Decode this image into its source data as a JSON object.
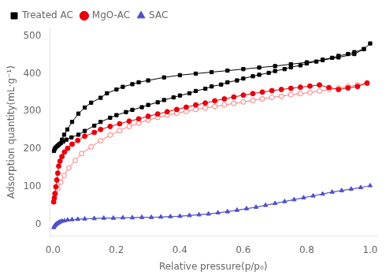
{
  "chart_data": {
    "type": "line",
    "title": "",
    "xlabel": "Relative pressure(p/p₀)",
    "ylabel": "Adsorption quantity(mL·g⁻¹)",
    "xlim": [
      -0.01,
      1.02
    ],
    "ylim": [
      -30,
      520
    ],
    "xticks": [
      {
        "value": 0.0,
        "label": "0.0"
      },
      0.2,
      0.4,
      0.6,
      0.8,
      {
        "value": 1.0,
        "label": "1.0"
      }
    ],
    "yticks": [
      0,
      100,
      200,
      300,
      400,
      500
    ],
    "grid": false,
    "legend": "upper left",
    "series": [
      {
        "name": "Treated AC",
        "color": "#000000",
        "marker": "square",
        "x": [
          0.003,
          0.005,
          0.008,
          0.012,
          0.016,
          0.02,
          0.025,
          0.032,
          0.042,
          0.058,
          0.08,
          0.1,
          0.13,
          0.15,
          0.18,
          0.2,
          0.23,
          0.25,
          0.28,
          0.3,
          0.33,
          0.35,
          0.38,
          0.4,
          0.43,
          0.45,
          0.48,
          0.5,
          0.53,
          0.55,
          0.58,
          0.6,
          0.63,
          0.65,
          0.68,
          0.7,
          0.73,
          0.75,
          0.78,
          0.8,
          0.83,
          0.85,
          0.88,
          0.9,
          0.93,
          0.95,
          0.98,
          1.0
        ],
        "values": [
          195,
          200,
          204,
          207,
          210,
          213,
          216,
          220,
          225,
          231,
          238,
          248,
          262,
          272,
          283,
          290,
          298,
          304,
          311,
          317,
          324,
          330,
          337,
          342,
          348,
          354,
          360,
          366,
          371,
          377,
          382,
          387,
          393,
          397,
          402,
          407,
          412,
          417,
          422,
          427,
          432,
          437,
          442,
          447,
          452,
          457,
          465,
          480
        ]
      },
      {
        "color": "#000000",
        "marker": "square",
        "x": [
          0.98,
          0.95,
          0.9,
          0.85,
          0.8,
          0.75,
          0.7,
          0.65,
          0.6,
          0.55,
          0.5,
          0.45,
          0.4,
          0.35,
          0.3,
          0.27,
          0.25,
          0.22,
          0.2,
          0.17,
          0.15,
          0.12,
          0.1,
          0.08,
          0.06,
          0.045,
          0.035,
          0.028
        ],
        "values": [
          465,
          452,
          443,
          436,
          430,
          425,
          420,
          416,
          412,
          408,
          404,
          400,
          396,
          390,
          382,
          377,
          372,
          365,
          358,
          348,
          336,
          323,
          310,
          294,
          272,
          252,
          238,
          225
        ]
      },
      {
        "name": "MgO-AC",
        "color": "#e8000d",
        "marker": "circle",
        "x": [
          0.002,
          0.004,
          0.006,
          0.009,
          0.012,
          0.015,
          0.018,
          0.022,
          0.028,
          0.036,
          0.046,
          0.06,
          0.078,
          0.1,
          0.13,
          0.15,
          0.18,
          0.21,
          0.24,
          0.27,
          0.3,
          0.33,
          0.36,
          0.39,
          0.42,
          0.45,
          0.48,
          0.51,
          0.54,
          0.57,
          0.6,
          0.63,
          0.66,
          0.69,
          0.72,
          0.75,
          0.78,
          0.81,
          0.84,
          0.87,
          0.9,
          0.93,
          0.96,
          0.99
        ],
        "values": [
          60,
          70,
          82,
          100,
          118,
          136,
          155,
          168,
          180,
          192,
          202,
          213,
          223,
          234,
          244,
          252,
          260,
          267,
          274,
          280,
          287,
          293,
          299,
          305,
          311,
          317,
          322,
          328,
          333,
          338,
          343,
          347,
          351,
          355,
          358,
          361,
          364,
          367,
          370,
          363,
          358,
          362,
          366,
          375
        ]
      },
      {
        "color": "#ff7777",
        "marker": "open_circle",
        "x": [
          0.99,
          0.96,
          0.93,
          0.9,
          0.87,
          0.84,
          0.81,
          0.78,
          0.75,
          0.72,
          0.69,
          0.66,
          0.63,
          0.6,
          0.57,
          0.54,
          0.51,
          0.48,
          0.45,
          0.42,
          0.39,
          0.36,
          0.33,
          0.3,
          0.27,
          0.24,
          0.21,
          0.18,
          0.15,
          0.12,
          0.09,
          0.07,
          0.05,
          0.035,
          0.024,
          0.015,
          0.008
        ],
        "values": [
          375,
          370,
          366,
          362,
          358,
          354,
          350,
          347,
          344,
          340,
          337,
          333,
          329,
          325,
          321,
          317,
          313,
          309,
          305,
          300,
          295,
          290,
          284,
          277,
          269,
          260,
          249,
          237,
          222,
          206,
          188,
          170,
          150,
          130,
          112,
          95,
          80
        ]
      },
      {
        "name": "SAC",
        "color": "#5050cc",
        "marker": "triangle",
        "x": [
          0.002,
          0.004,
          0.006,
          0.009,
          0.012,
          0.015,
          0.018,
          0.022,
          0.028,
          0.036,
          0.046,
          0.06,
          0.078,
          0.1,
          0.13,
          0.16,
          0.19,
          0.22,
          0.25,
          0.28,
          0.31,
          0.34,
          0.37,
          0.4,
          0.43,
          0.46,
          0.49,
          0.52,
          0.55,
          0.58,
          0.61,
          0.64,
          0.67,
          0.7,
          0.73,
          0.76,
          0.79,
          0.82,
          0.85,
          0.88,
          0.91,
          0.94,
          0.97,
          1.0
        ],
        "values": [
          -8,
          -5,
          -2,
          0,
          2,
          4,
          5,
          7,
          9,
          10,
          12,
          13,
          14,
          15,
          16,
          17,
          17,
          18,
          18,
          19,
          19,
          20,
          21,
          22,
          24,
          26,
          28,
          31,
          34,
          38,
          42,
          46,
          51,
          56,
          61,
          66,
          71,
          76,
          81,
          86,
          90,
          94,
          98,
          103
        ]
      },
      {
        "color": "#9999ee",
        "marker": "open_triangle",
        "x": [
          0.97,
          0.94,
          0.91,
          0.88,
          0.85,
          0.82,
          0.79,
          0.76,
          0.73,
          0.7,
          0.67,
          0.64,
          0.61,
          0.58,
          0.55,
          0.52,
          0.49,
          0.46,
          0.43,
          0.4,
          0.37,
          0.34,
          0.31,
          0.28,
          0.25,
          0.22,
          0.19,
          0.16,
          0.13,
          0.1,
          0.078,
          0.06,
          0.046,
          0.036,
          0.028,
          0.022,
          0.018,
          0.015,
          0.012,
          0.009
        ],
        "values": [
          98,
          94,
          90,
          86,
          81,
          76,
          71,
          66,
          61,
          56,
          51,
          46,
          42,
          38,
          34,
          31,
          28,
          26,
          24,
          22,
          21,
          20,
          19,
          19,
          18,
          18,
          17,
          17,
          16,
          15,
          14,
          13,
          12,
          10,
          9,
          7,
          5,
          4,
          2,
          0
        ]
      }
    ]
  }
}
